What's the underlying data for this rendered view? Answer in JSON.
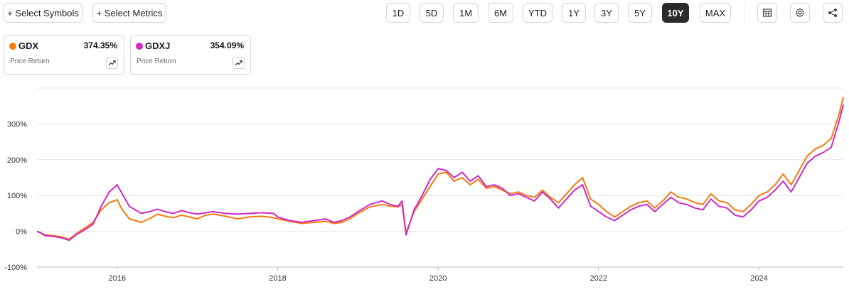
{
  "toolbar": {
    "select_symbols": "+ Select Symbols",
    "select_metrics": "+ Select Metrics",
    "ranges": [
      "1D",
      "5D",
      "1M",
      "6M",
      "YTD",
      "1Y",
      "3Y",
      "5Y",
      "10Y",
      "MAX"
    ],
    "active_range": "10Y",
    "icons": [
      "table-icon",
      "gear-icon",
      "share-icon"
    ]
  },
  "legend": [
    {
      "symbol": "GDX",
      "value": "374.35%",
      "subtitle": "Price Return",
      "color": "#f47b10"
    },
    {
      "symbol": "GDXJ",
      "value": "354.09%",
      "subtitle": "Price Return",
      "color": "#d02ac4"
    }
  ],
  "chart_data": {
    "type": "line",
    "ylim": [
      -100,
      400
    ],
    "xlim": [
      2015.0,
      2025.05
    ],
    "y_ticks": [
      -100,
      0,
      100,
      200,
      300
    ],
    "y_tick_labels": [
      "-100%",
      "0%",
      "100%",
      "200%",
      "300%"
    ],
    "x_ticks": [
      2016,
      2018,
      2020,
      2022,
      2024
    ],
    "x_tick_labels": [
      "2016",
      "2018",
      "2020",
      "2022",
      "2024"
    ],
    "grid": true,
    "series": [
      {
        "name": "GDX",
        "color": "#f47b10",
        "x": [
          2015.0,
          2015.05,
          2015.1,
          2015.2,
          2015.3,
          2015.4,
          2015.5,
          2015.6,
          2015.7,
          2015.8,
          2015.9,
          2016.0,
          2016.05,
          2016.15,
          2016.3,
          2016.4,
          2016.5,
          2016.6,
          2016.7,
          2016.8,
          2016.9,
          2017.0,
          2017.1,
          2017.2,
          2017.35,
          2017.5,
          2017.65,
          2017.8,
          2017.95,
          2018.0,
          2018.15,
          2018.3,
          2018.45,
          2018.6,
          2018.7,
          2018.8,
          2018.9,
          2019.0,
          2019.15,
          2019.3,
          2019.4,
          2019.5,
          2019.55,
          2019.6,
          2019.7,
          2019.8,
          2019.9,
          2020.0,
          2020.1,
          2020.2,
          2020.3,
          2020.4,
          2020.5,
          2020.6,
          2020.7,
          2020.8,
          2020.9,
          2021.0,
          2021.1,
          2021.2,
          2021.3,
          2021.4,
          2021.5,
          2021.6,
          2021.7,
          2021.8,
          2021.9,
          2022.0,
          2022.1,
          2022.2,
          2022.3,
          2022.4,
          2022.5,
          2022.6,
          2022.7,
          2022.8,
          2022.9,
          2023.0,
          2023.1,
          2023.2,
          2023.3,
          2023.4,
          2023.5,
          2023.6,
          2023.7,
          2023.8,
          2023.9,
          2024.0,
          2024.1,
          2024.2,
          2024.3,
          2024.4,
          2024.5,
          2024.6,
          2024.7,
          2024.8,
          2024.9,
          2025.0,
          2025.05
        ],
        "y": [
          0,
          -4,
          -10,
          -12,
          -15,
          -22,
          -5,
          10,
          25,
          60,
          80,
          88,
          65,
          35,
          25,
          35,
          48,
          42,
          38,
          45,
          40,
          35,
          45,
          48,
          42,
          35,
          40,
          42,
          38,
          35,
          28,
          22,
          25,
          28,
          22,
          25,
          35,
          50,
          68,
          75,
          70,
          68,
          75,
          -5,
          55,
          90,
          125,
          160,
          165,
          140,
          150,
          130,
          145,
          120,
          125,
          115,
          105,
          110,
          100,
          95,
          115,
          95,
          80,
          105,
          130,
          150,
          90,
          75,
          55,
          40,
          55,
          70,
          80,
          85,
          65,
          85,
          110,
          95,
          90,
          80,
          75,
          105,
          85,
          80,
          60,
          55,
          75,
          100,
          110,
          130,
          160,
          130,
          170,
          210,
          230,
          240,
          260,
          330,
          374.35
        ]
      },
      {
        "name": "GDXJ",
        "color": "#d02ac4",
        "x": [
          2015.0,
          2015.05,
          2015.1,
          2015.2,
          2015.3,
          2015.4,
          2015.5,
          2015.6,
          2015.7,
          2015.8,
          2015.9,
          2016.0,
          2016.05,
          2016.15,
          2016.3,
          2016.4,
          2016.5,
          2016.6,
          2016.7,
          2016.8,
          2016.9,
          2017.0,
          2017.1,
          2017.2,
          2017.35,
          2017.5,
          2017.65,
          2017.8,
          2017.95,
          2018.0,
          2018.15,
          2018.3,
          2018.45,
          2018.6,
          2018.7,
          2018.8,
          2018.9,
          2019.0,
          2019.15,
          2019.3,
          2019.4,
          2019.5,
          2019.55,
          2019.6,
          2019.7,
          2019.8,
          2019.9,
          2020.0,
          2020.1,
          2020.2,
          2020.3,
          2020.4,
          2020.5,
          2020.6,
          2020.7,
          2020.8,
          2020.9,
          2021.0,
          2021.1,
          2021.2,
          2021.3,
          2021.4,
          2021.5,
          2021.6,
          2021.7,
          2021.8,
          2021.9,
          2022.0,
          2022.1,
          2022.2,
          2022.3,
          2022.4,
          2022.5,
          2022.6,
          2022.7,
          2022.8,
          2022.9,
          2023.0,
          2023.1,
          2023.2,
          2023.3,
          2023.4,
          2023.5,
          2023.6,
          2023.7,
          2023.8,
          2023.9,
          2024.0,
          2024.1,
          2024.2,
          2024.3,
          2024.4,
          2024.5,
          2024.6,
          2024.7,
          2024.8,
          2024.9,
          2025.0,
          2025.05
        ],
        "y": [
          0,
          -5,
          -12,
          -14,
          -18,
          -25,
          -8,
          5,
          20,
          70,
          110,
          130,
          110,
          70,
          50,
          55,
          62,
          55,
          50,
          58,
          52,
          48,
          52,
          55,
          50,
          48,
          50,
          52,
          50,
          40,
          30,
          25,
          30,
          35,
          25,
          30,
          40,
          55,
          75,
          85,
          75,
          70,
          85,
          -10,
          60,
          100,
          145,
          175,
          170,
          150,
          165,
          140,
          155,
          125,
          130,
          120,
          100,
          105,
          95,
          85,
          110,
          90,
          65,
          90,
          115,
          130,
          70,
          55,
          40,
          30,
          45,
          60,
          70,
          75,
          55,
          75,
          95,
          80,
          75,
          65,
          60,
          90,
          70,
          65,
          45,
          40,
          60,
          85,
          95,
          115,
          140,
          110,
          150,
          190,
          210,
          220,
          235,
          310,
          354.09
        ]
      }
    ]
  }
}
